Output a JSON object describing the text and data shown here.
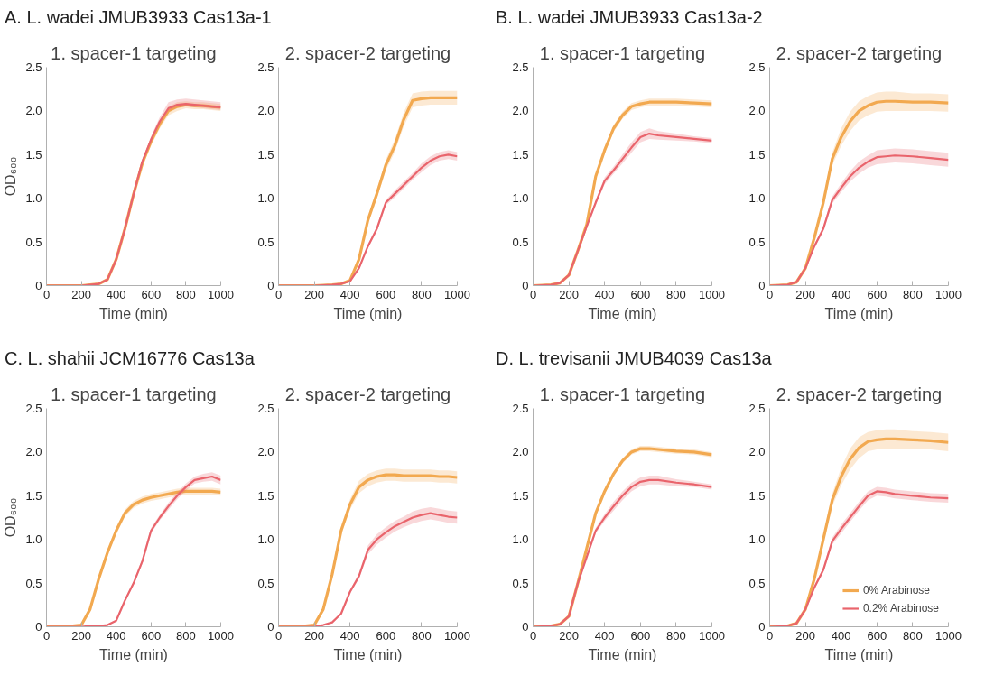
{
  "chart_data": [
    {
      "type": "line",
      "title": "1. spacer-1 targeting",
      "annotations": [
        "A. L. wadei JMUB3933 Cas13a-1"
      ],
      "xlabel": "Time (min)",
      "ylabel": "OD₆₀₀",
      "xlim": [
        0,
        1000
      ],
      "ylim": [
        0,
        2.5
      ],
      "xticks": [
        0,
        200,
        400,
        600,
        800,
        1000
      ],
      "yticks": [
        0,
        {
          "value": 0.5,
          "label": "0.5"
        },
        {
          "value": 1,
          "label": "1.0"
        },
        {
          "value": 1.5,
          "label": "1.5"
        },
        {
          "value": 2,
          "label": "2.0"
        },
        {
          "value": 2.5,
          "label": "2.5"
        }
      ],
      "grid": false,
      "x": [
        0,
        100,
        200,
        300,
        350,
        400,
        450,
        500,
        550,
        600,
        650,
        700,
        750,
        800,
        850,
        900,
        950,
        1000
      ],
      "series": [
        {
          "color": "#f2a950",
          "values": [
            0,
            0,
            0,
            0.02,
            0.07,
            0.3,
            0.65,
            1.05,
            1.4,
            1.65,
            1.85,
            2.0,
            2.05,
            2.07,
            2.06,
            2.06,
            2.05,
            2.04
          ],
          "lower": [
            0,
            0,
            0,
            0.02,
            0.07,
            0.3,
            0.65,
            1.03,
            1.37,
            1.6,
            1.8,
            1.95,
            2.0,
            2.03,
            2.02,
            2.02,
            2.01,
            2.0
          ],
          "upper": [
            0,
            0,
            0,
            0.02,
            0.07,
            0.3,
            0.65,
            1.07,
            1.43,
            1.7,
            1.9,
            2.05,
            2.1,
            2.11,
            2.1,
            2.1,
            2.09,
            2.08
          ]
        },
        {
          "color": "#e9646c",
          "values": [
            0,
            0,
            0,
            0.02,
            0.07,
            0.3,
            0.65,
            1.05,
            1.42,
            1.67,
            1.88,
            2.03,
            2.07,
            2.08,
            2.07,
            2.06,
            2.05,
            2.04
          ],
          "lower": [
            0,
            0,
            0,
            0.02,
            0.07,
            0.3,
            0.65,
            1.03,
            1.39,
            1.64,
            1.85,
            2.0,
            2.04,
            2.05,
            2.04,
            2.03,
            2.02,
            2.01
          ],
          "upper": [
            0,
            0,
            0,
            0.02,
            0.07,
            0.3,
            0.65,
            1.07,
            1.45,
            1.71,
            1.93,
            2.1,
            2.13,
            2.14,
            2.13,
            2.12,
            2.11,
            2.1
          ]
        }
      ]
    },
    {
      "type": "line",
      "title": "2. spacer-2 targeting",
      "xlabel": "Time (min)",
      "xlim": [
        0,
        1000
      ],
      "ylim": [
        0,
        2.5
      ],
      "xticks": [
        0,
        200,
        400,
        600,
        800,
        1000
      ],
      "yticks": [
        0,
        {
          "value": 0.5,
          "label": "0.5"
        },
        {
          "value": 1,
          "label": "1.0"
        },
        {
          "value": 1.5,
          "label": "1.5"
        },
        {
          "value": 2,
          "label": "2.0"
        },
        {
          "value": 2.5,
          "label": "2.5"
        }
      ],
      "grid": false,
      "x": [
        0,
        100,
        200,
        300,
        350,
        400,
        450,
        500,
        550,
        600,
        650,
        700,
        750,
        800,
        850,
        900,
        950,
        1000
      ],
      "series": [
        {
          "color": "#f2a950",
          "values": [
            0,
            0,
            0,
            0.01,
            0.02,
            0.06,
            0.3,
            0.75,
            1.05,
            1.38,
            1.6,
            1.9,
            2.12,
            2.14,
            2.15,
            2.15,
            2.15,
            2.15
          ],
          "lower": [
            0,
            0,
            0,
            0.01,
            0.02,
            0.06,
            0.28,
            0.71,
            1.0,
            1.32,
            1.53,
            1.82,
            2.04,
            2.06,
            2.07,
            2.07,
            2.07,
            2.07
          ],
          "upper": [
            0,
            0,
            0,
            0.01,
            0.02,
            0.06,
            0.32,
            0.79,
            1.1,
            1.44,
            1.67,
            1.98,
            2.2,
            2.22,
            2.23,
            2.23,
            2.23,
            2.23
          ]
        },
        {
          "color": "#e9646c",
          "values": [
            0,
            0,
            0,
            0.01,
            0.02,
            0.05,
            0.2,
            0.45,
            0.65,
            0.95,
            1.05,
            1.15,
            1.25,
            1.35,
            1.43,
            1.48,
            1.5,
            1.48
          ],
          "lower": [
            0,
            0,
            0,
            0.01,
            0.02,
            0.05,
            0.19,
            0.43,
            0.62,
            0.92,
            1.01,
            1.11,
            1.21,
            1.3,
            1.38,
            1.43,
            1.45,
            1.43
          ],
          "upper": [
            0,
            0,
            0,
            0.01,
            0.02,
            0.05,
            0.21,
            0.47,
            0.68,
            0.98,
            1.09,
            1.19,
            1.29,
            1.4,
            1.48,
            1.53,
            1.55,
            1.53
          ]
        }
      ]
    },
    {
      "type": "line",
      "title": "1. spacer-1 targeting",
      "annotations": [
        "B. L. wadei JMUB3933 Cas13a-2"
      ],
      "xlabel": "Time (min)",
      "xlim": [
        0,
        1000
      ],
      "ylim": [
        0,
        2.5
      ],
      "xticks": [
        0,
        200,
        400,
        600,
        800,
        1000
      ],
      "yticks": [
        0,
        {
          "value": 0.5,
          "label": "0.5"
        },
        {
          "value": 1,
          "label": "1.0"
        },
        {
          "value": 1.5,
          "label": "1.5"
        },
        {
          "value": 2,
          "label": "2.0"
        },
        {
          "value": 2.5,
          "label": "2.5"
        }
      ],
      "grid": false,
      "x": [
        0,
        100,
        150,
        200,
        250,
        300,
        350,
        400,
        450,
        500,
        550,
        600,
        650,
        700,
        800,
        900,
        1000
      ],
      "series": [
        {
          "color": "#f2a950",
          "values": [
            0,
            0.01,
            0.03,
            0.12,
            0.4,
            0.7,
            1.25,
            1.55,
            1.8,
            1.95,
            2.05,
            2.08,
            2.1,
            2.1,
            2.1,
            2.09,
            2.08
          ],
          "lower": [
            0,
            0.01,
            0.03,
            0.12,
            0.39,
            0.68,
            1.22,
            1.51,
            1.76,
            1.91,
            2.01,
            2.04,
            2.06,
            2.06,
            2.06,
            2.05,
            2.04
          ],
          "upper": [
            0,
            0.01,
            0.03,
            0.12,
            0.41,
            0.72,
            1.28,
            1.59,
            1.84,
            1.99,
            2.09,
            2.12,
            2.14,
            2.14,
            2.14,
            2.13,
            2.12
          ]
        },
        {
          "color": "#e9646c",
          "values": [
            0,
            0.01,
            0.03,
            0.12,
            0.4,
            0.68,
            0.95,
            1.2,
            1.32,
            1.45,
            1.58,
            1.7,
            1.74,
            1.72,
            1.7,
            1.68,
            1.66
          ],
          "lower": [
            0,
            0.01,
            0.03,
            0.12,
            0.39,
            0.66,
            0.92,
            1.16,
            1.28,
            1.4,
            1.52,
            1.64,
            1.68,
            1.67,
            1.66,
            1.65,
            1.63
          ],
          "upper": [
            0,
            0.01,
            0.03,
            0.12,
            0.41,
            0.7,
            0.98,
            1.24,
            1.36,
            1.5,
            1.64,
            1.76,
            1.8,
            1.77,
            1.74,
            1.71,
            1.69
          ]
        }
      ]
    },
    {
      "type": "line",
      "title": "2. spacer-2 targeting",
      "xlabel": "Time (min)",
      "xlim": [
        0,
        1000
      ],
      "ylim": [
        0,
        2.5
      ],
      "xticks": [
        0,
        200,
        400,
        600,
        800,
        1000
      ],
      "yticks": [
        0,
        {
          "value": 0.5,
          "label": "0.5"
        },
        {
          "value": 1,
          "label": "1.0"
        },
        {
          "value": 1.5,
          "label": "1.5"
        },
        {
          "value": 2,
          "label": "2.0"
        },
        {
          "value": 2.5,
          "label": "2.5"
        }
      ],
      "grid": false,
      "x": [
        0,
        100,
        150,
        200,
        250,
        300,
        350,
        400,
        450,
        500,
        550,
        600,
        650,
        700,
        800,
        900,
        1000
      ],
      "series": [
        {
          "color": "#f2a950",
          "values": [
            0,
            0.01,
            0.04,
            0.2,
            0.55,
            0.95,
            1.45,
            1.7,
            1.88,
            2.0,
            2.06,
            2.1,
            2.11,
            2.11,
            2.1,
            2.1,
            2.09
          ],
          "lower": [
            0,
            0.01,
            0.04,
            0.19,
            0.52,
            0.9,
            1.38,
            1.6,
            1.77,
            1.89,
            1.95,
            1.99,
            2.0,
            2.0,
            2.0,
            2.0,
            1.99
          ],
          "upper": [
            0,
            0.01,
            0.04,
            0.21,
            0.58,
            1.0,
            1.52,
            1.8,
            1.99,
            2.11,
            2.17,
            2.21,
            2.22,
            2.22,
            2.2,
            2.2,
            2.19
          ]
        },
        {
          "color": "#e9646c",
          "values": [
            0,
            0.01,
            0.04,
            0.2,
            0.45,
            0.65,
            0.98,
            1.12,
            1.25,
            1.35,
            1.42,
            1.47,
            1.48,
            1.49,
            1.48,
            1.46,
            1.44
          ],
          "lower": [
            0,
            0.01,
            0.04,
            0.19,
            0.43,
            0.62,
            0.94,
            1.07,
            1.19,
            1.28,
            1.35,
            1.39,
            1.4,
            1.41,
            1.4,
            1.38,
            1.36
          ],
          "upper": [
            0,
            0.01,
            0.04,
            0.21,
            0.47,
            0.68,
            1.02,
            1.17,
            1.31,
            1.42,
            1.49,
            1.55,
            1.56,
            1.57,
            1.56,
            1.54,
            1.52
          ]
        }
      ]
    },
    {
      "type": "line",
      "title": "1. spacer-1 targeting",
      "annotations": [
        "C. L. shahii JCM16776 Cas13a"
      ],
      "xlabel": "Time (min)",
      "ylabel": "OD₆₀₀",
      "xlim": [
        0,
        1000
      ],
      "ylim": [
        0,
        2.5
      ],
      "xticks": [
        0,
        200,
        400,
        600,
        800,
        1000
      ],
      "yticks": [
        0,
        {
          "value": 0.5,
          "label": "0.5"
        },
        {
          "value": 1,
          "label": "1.0"
        },
        {
          "value": 1.5,
          "label": "1.5"
        },
        {
          "value": 2,
          "label": "2.0"
        },
        {
          "value": 2.5,
          "label": "2.5"
        }
      ],
      "grid": false,
      "x": [
        0,
        100,
        200,
        250,
        300,
        350,
        400,
        450,
        500,
        550,
        600,
        650,
        700,
        750,
        800,
        850,
        900,
        950,
        1000
      ],
      "series": [
        {
          "color": "#f2a950",
          "values": [
            0,
            0,
            0.02,
            0.2,
            0.55,
            0.85,
            1.1,
            1.3,
            1.4,
            1.45,
            1.48,
            1.5,
            1.52,
            1.54,
            1.55,
            1.55,
            1.55,
            1.55,
            1.54
          ],
          "lower": [
            0,
            0,
            0.02,
            0.19,
            0.53,
            0.82,
            1.06,
            1.26,
            1.36,
            1.41,
            1.44,
            1.46,
            1.48,
            1.5,
            1.51,
            1.51,
            1.51,
            1.51,
            1.5
          ],
          "upper": [
            0,
            0,
            0.02,
            0.21,
            0.57,
            0.88,
            1.14,
            1.34,
            1.44,
            1.49,
            1.52,
            1.54,
            1.56,
            1.58,
            1.59,
            1.59,
            1.59,
            1.59,
            1.58
          ]
        },
        {
          "color": "#e9646c",
          "values": [
            0,
            0,
            0,
            0.01,
            0.01,
            0.02,
            0.07,
            0.3,
            0.5,
            0.75,
            1.1,
            1.25,
            1.38,
            1.5,
            1.6,
            1.68,
            1.7,
            1.72,
            1.68
          ],
          "lower": [
            0,
            0,
            0,
            0.01,
            0.01,
            0.02,
            0.07,
            0.29,
            0.48,
            0.72,
            1.07,
            1.22,
            1.34,
            1.46,
            1.56,
            1.64,
            1.66,
            1.67,
            1.63
          ],
          "upper": [
            0,
            0,
            0,
            0.01,
            0.01,
            0.02,
            0.07,
            0.31,
            0.52,
            0.78,
            1.13,
            1.28,
            1.42,
            1.54,
            1.64,
            1.72,
            1.75,
            1.77,
            1.73
          ]
        }
      ]
    },
    {
      "type": "line",
      "title": "2. spacer-2 targeting",
      "xlabel": "Time (min)",
      "xlim": [
        0,
        1000
      ],
      "ylim": [
        0,
        2.5
      ],
      "xticks": [
        0,
        200,
        400,
        600,
        800,
        1000
      ],
      "yticks": [
        0,
        {
          "value": 0.5,
          "label": "0.5"
        },
        {
          "value": 1,
          "label": "1.0"
        },
        {
          "value": 1.5,
          "label": "1.5"
        },
        {
          "value": 2,
          "label": "2.0"
        },
        {
          "value": 2.5,
          "label": "2.5"
        }
      ],
      "grid": false,
      "x": [
        0,
        100,
        200,
        250,
        300,
        350,
        400,
        450,
        500,
        550,
        600,
        650,
        700,
        750,
        800,
        850,
        900,
        950,
        1000
      ],
      "series": [
        {
          "color": "#f2a950",
          "values": [
            0,
            0,
            0.02,
            0.2,
            0.6,
            1.1,
            1.4,
            1.6,
            1.68,
            1.72,
            1.74,
            1.74,
            1.73,
            1.73,
            1.73,
            1.73,
            1.72,
            1.72,
            1.71
          ],
          "lower": [
            0,
            0,
            0.02,
            0.19,
            0.57,
            1.05,
            1.34,
            1.53,
            1.61,
            1.65,
            1.67,
            1.67,
            1.66,
            1.66,
            1.66,
            1.66,
            1.65,
            1.65,
            1.64
          ],
          "upper": [
            0,
            0,
            0.02,
            0.21,
            0.63,
            1.15,
            1.46,
            1.67,
            1.75,
            1.79,
            1.81,
            1.81,
            1.8,
            1.8,
            1.8,
            1.8,
            1.79,
            1.79,
            1.78
          ]
        },
        {
          "color": "#e9646c",
          "values": [
            0,
            0,
            0,
            0.02,
            0.05,
            0.15,
            0.4,
            0.58,
            0.88,
            1.0,
            1.08,
            1.15,
            1.2,
            1.25,
            1.28,
            1.3,
            1.28,
            1.26,
            1.25
          ],
          "lower": [
            0,
            0,
            0,
            0.02,
            0.05,
            0.14,
            0.38,
            0.55,
            0.83,
            0.94,
            1.02,
            1.09,
            1.14,
            1.18,
            1.21,
            1.23,
            1.21,
            1.19,
            1.18
          ],
          "upper": [
            0,
            0,
            0,
            0.02,
            0.05,
            0.16,
            0.42,
            0.61,
            0.93,
            1.06,
            1.14,
            1.21,
            1.26,
            1.32,
            1.35,
            1.37,
            1.35,
            1.33,
            1.32
          ]
        }
      ]
    },
    {
      "type": "line",
      "title": "1. spacer-1 targeting",
      "annotations": [
        "D. L. trevisanii JMUB4039 Cas13a"
      ],
      "xlabel": "Time (min)",
      "xlim": [
        0,
        1000
      ],
      "ylim": [
        0,
        2.5
      ],
      "xticks": [
        0,
        200,
        400,
        600,
        800,
        1000
      ],
      "yticks": [
        0,
        {
          "value": 0.5,
          "label": "0.5"
        },
        {
          "value": 1,
          "label": "1.0"
        },
        {
          "value": 1.5,
          "label": "1.5"
        },
        {
          "value": 2,
          "label": "2.0"
        },
        {
          "value": 2.5,
          "label": "2.5"
        }
      ],
      "grid": false,
      "x": [
        0,
        100,
        150,
        200,
        250,
        300,
        350,
        400,
        450,
        500,
        550,
        600,
        650,
        700,
        800,
        900,
        1000
      ],
      "series": [
        {
          "color": "#f2a950",
          "values": [
            0,
            0.01,
            0.03,
            0.12,
            0.5,
            0.9,
            1.3,
            1.55,
            1.75,
            1.9,
            2.0,
            2.04,
            2.04,
            2.03,
            2.01,
            2.0,
            1.97
          ],
          "lower": [
            0,
            0.01,
            0.03,
            0.12,
            0.49,
            0.88,
            1.27,
            1.52,
            1.72,
            1.87,
            1.97,
            2.01,
            2.01,
            2.0,
            1.98,
            1.97,
            1.94
          ],
          "upper": [
            0,
            0.01,
            0.03,
            0.12,
            0.51,
            0.92,
            1.33,
            1.58,
            1.78,
            1.93,
            2.03,
            2.07,
            2.07,
            2.06,
            2.04,
            2.03,
            2.0
          ]
        },
        {
          "color": "#e9646c",
          "values": [
            0,
            0.01,
            0.03,
            0.12,
            0.5,
            0.8,
            1.1,
            1.25,
            1.38,
            1.5,
            1.6,
            1.66,
            1.68,
            1.68,
            1.65,
            1.63,
            1.6
          ],
          "lower": [
            0,
            0.01,
            0.03,
            0.12,
            0.49,
            0.78,
            1.07,
            1.21,
            1.33,
            1.45,
            1.55,
            1.61,
            1.63,
            1.63,
            1.61,
            1.6,
            1.57
          ],
          "upper": [
            0,
            0.01,
            0.03,
            0.12,
            0.51,
            0.82,
            1.13,
            1.29,
            1.43,
            1.55,
            1.65,
            1.71,
            1.73,
            1.73,
            1.69,
            1.66,
            1.63
          ]
        }
      ]
    },
    {
      "type": "line",
      "title": "2. spacer-2 targeting",
      "xlabel": "Time (min)",
      "xlim": [
        0,
        1000
      ],
      "ylim": [
        0,
        2.5
      ],
      "xticks": [
        0,
        200,
        400,
        600,
        800,
        1000
      ],
      "yticks": [
        0,
        {
          "value": 0.5,
          "label": "0.5"
        },
        {
          "value": 1,
          "label": "1.0"
        },
        {
          "value": 1.5,
          "label": "1.5"
        },
        {
          "value": 2,
          "label": "2.0"
        },
        {
          "value": 2.5,
          "label": "2.5"
        }
      ],
      "grid": false,
      "legend": "bottom right",
      "x": [
        0,
        100,
        150,
        200,
        250,
        300,
        350,
        400,
        450,
        500,
        550,
        600,
        650,
        700,
        800,
        900,
        1000
      ],
      "series": [
        {
          "name": "0% Arabinose",
          "color": "#f2a950",
          "values": [
            0,
            0.01,
            0.04,
            0.2,
            0.55,
            1.0,
            1.45,
            1.72,
            1.92,
            2.05,
            2.12,
            2.14,
            2.15,
            2.15,
            2.14,
            2.13,
            2.11
          ],
          "lower": [
            0,
            0.01,
            0.04,
            0.19,
            0.52,
            0.95,
            1.38,
            1.62,
            1.8,
            1.93,
            2.01,
            2.03,
            2.04,
            2.04,
            2.04,
            2.03,
            2.01
          ],
          "upper": [
            0,
            0.01,
            0.04,
            0.21,
            0.58,
            1.05,
            1.52,
            1.82,
            2.04,
            2.17,
            2.23,
            2.25,
            2.26,
            2.26,
            2.24,
            2.23,
            2.21
          ]
        },
        {
          "name": "0.2% Arabinose",
          "color": "#e9646c",
          "values": [
            0,
            0.01,
            0.04,
            0.2,
            0.45,
            0.65,
            0.98,
            1.12,
            1.25,
            1.38,
            1.5,
            1.55,
            1.54,
            1.52,
            1.5,
            1.48,
            1.47
          ],
          "lower": [
            0,
            0.01,
            0.04,
            0.19,
            0.43,
            0.62,
            0.94,
            1.07,
            1.2,
            1.33,
            1.45,
            1.5,
            1.49,
            1.47,
            1.45,
            1.43,
            1.42
          ],
          "upper": [
            0,
            0.01,
            0.04,
            0.21,
            0.47,
            0.68,
            1.02,
            1.17,
            1.3,
            1.43,
            1.55,
            1.6,
            1.59,
            1.57,
            1.55,
            1.53,
            1.52
          ]
        }
      ]
    }
  ]
}
